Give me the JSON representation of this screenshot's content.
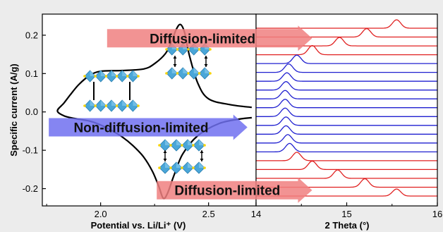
{
  "chart_data": [
    {
      "type": "line",
      "xlabel": "Potential vs. Li/Li⁺ (V)",
      "ylabel": "Specific current (A/g)",
      "xlim": [
        1.73,
        2.72
      ],
      "ylim": [
        -0.245,
        0.255
      ],
      "x_ticks": [
        "2.0",
        "2.5"
      ],
      "y_ticks": [
        "0.2",
        "0.1",
        "0.0",
        "-0.1",
        "-0.2"
      ],
      "x_tick_values": [
        2.0,
        2.5
      ],
      "y_tick_values": [
        0.2,
        0.1,
        0.0,
        -0.1,
        -0.2
      ],
      "series": [
        {
          "color": "#000000",
          "points": [
            [
              2.7,
              0.012
            ],
            [
              2.6,
              0.019
            ],
            [
              2.5,
              0.034
            ],
            [
              2.45,
              0.075
            ],
            [
              2.41,
              0.15
            ],
            [
              2.39,
              0.205
            ],
            [
              2.37,
              0.228
            ],
            [
              2.35,
              0.215
            ],
            [
              2.33,
              0.185
            ],
            [
              2.3,
              0.152
            ],
            [
              2.25,
              0.126
            ],
            [
              2.2,
              0.112
            ],
            [
              2.1,
              0.108
            ],
            [
              2.0,
              0.106
            ],
            [
              1.95,
              0.095
            ],
            [
              1.9,
              0.072
            ],
            [
              1.86,
              0.045
            ],
            [
              1.83,
              0.023
            ],
            [
              1.8,
              0.003
            ],
            [
              1.83,
              -0.01
            ],
            [
              1.88,
              -0.017
            ],
            [
              1.95,
              -0.024
            ],
            [
              2.0,
              -0.034
            ],
            [
              2.05,
              -0.048
            ],
            [
              2.1,
              -0.065
            ],
            [
              2.15,
              -0.088
            ],
            [
              2.2,
              -0.118
            ],
            [
              2.24,
              -0.155
            ],
            [
              2.27,
              -0.195
            ],
            [
              2.29,
              -0.225
            ],
            [
              2.31,
              -0.212
            ],
            [
              2.34,
              -0.165
            ],
            [
              2.38,
              -0.11
            ],
            [
              2.45,
              -0.062
            ],
            [
              2.55,
              -0.03
            ],
            [
              2.65,
              -0.018
            ],
            [
              2.7,
              -0.015
            ]
          ]
        }
      ],
      "annotations": [
        {
          "text": "Diffusion-limited",
          "color": "#f08080",
          "arrow_x": [
            2.03,
            2.98
          ],
          "y": 0.192
        },
        {
          "text": "Non-diffusion-limited",
          "color": "#7070f0",
          "arrow_x": [
            1.76,
            2.68
          ],
          "y": -0.04
        },
        {
          "text": "Diffusion-limited",
          "color": "#f08080",
          "arrow_x": [
            2.26,
            2.98
          ],
          "y": -0.204
        }
      ]
    },
    {
      "type": "line",
      "xlabel": "2 Theta (°)",
      "xlim": [
        14,
        16
      ],
      "x_ticks": [
        "14",
        "15",
        "16"
      ],
      "x_tick_values": [
        14,
        15,
        16
      ],
      "series": [
        {
          "color": "#e02020",
          "peak_center": 15.55,
          "peak_height": 12
        },
        {
          "color": "#e02020",
          "peak_center": 15.22,
          "peak_height": 12
        },
        {
          "color": "#e02020",
          "peak_center": 14.92,
          "peak_height": 12
        },
        {
          "color": "#e02020",
          "peak_center": 14.62,
          "peak_height": 13
        },
        {
          "color": "#2020d0",
          "peak_center": 14.45,
          "peak_height": 12
        },
        {
          "color": "#2020d0",
          "peak_center": 14.36,
          "peak_height": 12
        },
        {
          "color": "#2020d0",
          "peak_center": 14.34,
          "peak_height": 12
        },
        {
          "color": "#2020d0",
          "peak_center": 14.33,
          "peak_height": 12
        },
        {
          "color": "#2020d0",
          "peak_center": 14.32,
          "peak_height": 12
        },
        {
          "color": "#2020d0",
          "peak_center": 14.32,
          "peak_height": 12
        },
        {
          "color": "#2020d0",
          "peak_center": 14.32,
          "peak_height": 12
        },
        {
          "color": "#2020d0",
          "peak_center": 14.33,
          "peak_height": 12
        },
        {
          "color": "#2020d0",
          "peak_center": 14.33,
          "peak_height": 12
        },
        {
          "color": "#2020d0",
          "peak_center": 14.35,
          "peak_height": 12
        },
        {
          "color": "#2020d0",
          "peak_center": 14.37,
          "peak_height": 12
        },
        {
          "color": "#e02020",
          "peak_center": 14.45,
          "peak_height": 12
        },
        {
          "color": "#e02020",
          "peak_center": 14.62,
          "peak_height": 12
        },
        {
          "color": "#e02020",
          "peak_center": 14.9,
          "peak_height": 12
        },
        {
          "color": "#e02020",
          "peak_center": 15.2,
          "peak_height": 12
        },
        {
          "color": "#e02020",
          "peak_center": 15.55,
          "peak_height": 10
        }
      ]
    }
  ]
}
